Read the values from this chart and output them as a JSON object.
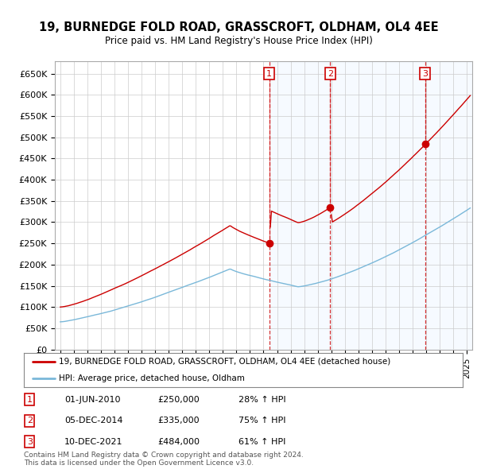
{
  "title_line1": "19, BURNEDGE FOLD ROAD, GRASSCROFT, OLDHAM, OL4 4EE",
  "title_line2": "Price paid vs. HM Land Registry's House Price Index (HPI)",
  "ylim": [
    0,
    680000
  ],
  "yticks": [
    0,
    50000,
    100000,
    150000,
    200000,
    250000,
    300000,
    350000,
    400000,
    450000,
    500000,
    550000,
    600000,
    650000
  ],
  "ytick_labels": [
    "£0",
    "£50K",
    "£100K",
    "£150K",
    "£200K",
    "£250K",
    "£300K",
    "£350K",
    "£400K",
    "£450K",
    "£500K",
    "£550K",
    "£600K",
    "£650K"
  ],
  "sale_times": [
    2010.417,
    2014.917,
    2021.917
  ],
  "sale_prices": [
    250000,
    335000,
    484000
  ],
  "sale_labels": [
    "1",
    "2",
    "3"
  ],
  "hpi_color": "#7ab8d9",
  "sale_color": "#cc0000",
  "background_color": "#ffffff",
  "grid_color": "#cccccc",
  "shade_color": "#ddeeff",
  "legend_line1": "19, BURNEDGE FOLD ROAD, GRASSCROFT, OLDHAM, OL4 4EE (detached house)",
  "legend_line2": "HPI: Average price, detached house, Oldham",
  "table_data": [
    {
      "label": "1",
      "date": "01-JUN-2010",
      "price": "£250,000",
      "hpi": "28% ↑ HPI"
    },
    {
      "label": "2",
      "date": "05-DEC-2014",
      "price": "£335,000",
      "hpi": "75% ↑ HPI"
    },
    {
      "label": "3",
      "date": "10-DEC-2021",
      "price": "£484,000",
      "hpi": "61% ↑ HPI"
    }
  ],
  "footer": "Contains HM Land Registry data © Crown copyright and database right 2024.\nThis data is licensed under the Open Government Licence v3.0.",
  "xstart": 1995,
  "xend": 2025
}
